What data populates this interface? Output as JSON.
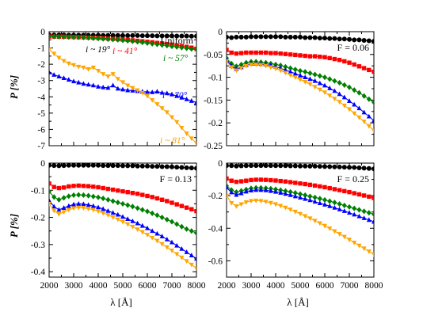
{
  "figure": {
    "xlabel": "λ [Å]",
    "ylabel": "P [%]",
    "colors": {
      "i19": "#000000",
      "i41": "#ff0000",
      "i57": "#008000",
      "i70": "#0000ff",
      "i81": "#ffa500"
    },
    "markers": {
      "i19": "circle",
      "i41": "square",
      "i57": "diamond",
      "i70": "triangle-up",
      "i81": "triangle-down"
    }
  },
  "chart_data": [
    {
      "type": "line",
      "panel": "top-left",
      "annotation": "Uniform",
      "ylim": [
        -7,
        0
      ],
      "xlim": [
        2000,
        8000
      ],
      "yticks": [
        "0",
        "-1",
        "-2",
        "-3",
        "-4",
        "-5",
        "-6",
        "-7"
      ],
      "xticks": [],
      "x": [
        2000,
        2200,
        2400,
        2600,
        2800,
        3000,
        3200,
        3400,
        3600,
        3800,
        4000,
        4200,
        4400,
        4600,
        4800,
        5000,
        5200,
        5400,
        5600,
        5800,
        6000,
        6200,
        6400,
        6600,
        6800,
        7000,
        7200,
        7400,
        7600,
        7800,
        8000
      ],
      "series": [
        {
          "key": "i19",
          "label": "i ~ 19°",
          "values": [
            -0.2,
            -0.2,
            -0.2,
            -0.2,
            -0.21,
            -0.21,
            -0.21,
            -0.21,
            -0.22,
            -0.22,
            -0.22,
            -0.23,
            -0.23,
            -0.23,
            -0.23,
            -0.24,
            -0.24,
            -0.24,
            -0.24,
            -0.25,
            -0.25,
            -0.25,
            -0.26,
            -0.26,
            -0.26,
            -0.26,
            -0.27,
            -0.27,
            -0.27,
            -0.28,
            -0.28
          ]
        },
        {
          "key": "i41",
          "label": "i ~ 41°",
          "values": [
            -0.3,
            -0.3,
            -0.31,
            -0.31,
            -0.32,
            -0.33,
            -0.34,
            -0.35,
            -0.36,
            -0.37,
            -0.38,
            -0.4,
            -0.42,
            -0.44,
            -0.46,
            -0.48,
            -0.5,
            -0.53,
            -0.56,
            -0.59,
            -0.62,
            -0.65,
            -0.69,
            -0.72,
            -0.76,
            -0.8,
            -0.84,
            -0.88,
            -0.93,
            -0.98,
            -1.05
          ]
        },
        {
          "key": "i57",
          "label": "i ~ 57°",
          "values": [
            -0.3,
            -0.3,
            -0.31,
            -0.32,
            -0.33,
            -0.34,
            -0.35,
            -0.36,
            -0.38,
            -0.4,
            -0.42,
            -0.44,
            -0.46,
            -0.48,
            -0.5,
            -0.53,
            -0.56,
            -0.59,
            -0.62,
            -0.66,
            -0.7,
            -0.74,
            -0.78,
            -0.82,
            -0.86,
            -0.9,
            -0.94,
            -0.98,
            -1.02,
            -1.06,
            -1.1
          ]
        },
        {
          "key": "i70",
          "label": "i ~ 70°",
          "values": [
            -2.5,
            -2.65,
            -2.75,
            -2.85,
            -2.95,
            -3.05,
            -3.12,
            -3.2,
            -3.25,
            -3.3,
            -3.38,
            -3.42,
            -3.45,
            -3.3,
            -3.5,
            -3.55,
            -3.6,
            -3.62,
            -3.65,
            -3.68,
            -3.7,
            -3.72,
            -3.68,
            -3.75,
            -3.78,
            -3.85,
            -3.95,
            -4.05,
            -4.15,
            -4.25,
            -4.35
          ]
        },
        {
          "key": "i81",
          "label": "i ~ 81°",
          "values": [
            -1.1,
            -1.35,
            -1.6,
            -1.8,
            -1.95,
            -2.05,
            -2.15,
            -2.2,
            -2.3,
            -2.2,
            -2.4,
            -2.6,
            -2.75,
            -2.6,
            -2.9,
            -3.1,
            -3.3,
            -3.45,
            -3.6,
            -3.75,
            -3.95,
            -4.2,
            -4.45,
            -4.7,
            -4.95,
            -5.25,
            -5.55,
            -5.9,
            -6.25,
            -6.55,
            -6.85
          ]
        }
      ]
    },
    {
      "type": "line",
      "panel": "top-right",
      "annotation": "F = 0.06",
      "ylim": [
        -0.25,
        0
      ],
      "xlim": [
        2000,
        8000
      ],
      "yticks": [
        "0",
        "-0.05",
        "-0.1",
        "-0.15",
        "-0.2",
        "-0.25"
      ],
      "xticks": [],
      "x": [
        2000,
        2200,
        2400,
        2600,
        2800,
        3000,
        3200,
        3400,
        3600,
        3800,
        4000,
        4200,
        4400,
        4600,
        4800,
        5000,
        5200,
        5400,
        5600,
        5800,
        6000,
        6200,
        6400,
        6600,
        6800,
        7000,
        7200,
        7400,
        7600,
        7800,
        8000
      ],
      "series": [
        {
          "key": "i19",
          "values": [
            -0.012,
            -0.013,
            -0.012,
            -0.012,
            -0.012,
            -0.011,
            -0.011,
            -0.011,
            -0.011,
            -0.011,
            -0.011,
            -0.011,
            -0.012,
            -0.012,
            -0.012,
            -0.012,
            -0.013,
            -0.013,
            -0.013,
            -0.014,
            -0.014,
            -0.015,
            -0.015,
            -0.016,
            -0.016,
            -0.017,
            -0.018,
            -0.018,
            -0.019,
            -0.02,
            -0.021
          ]
        },
        {
          "key": "i41",
          "values": [
            -0.04,
            -0.046,
            -0.048,
            -0.047,
            -0.046,
            -0.046,
            -0.046,
            -0.046,
            -0.046,
            -0.047,
            -0.047,
            -0.048,
            -0.049,
            -0.05,
            -0.051,
            -0.052,
            -0.053,
            -0.054,
            -0.054,
            -0.055,
            -0.056,
            -0.058,
            -0.06,
            -0.062,
            -0.065,
            -0.068,
            -0.072,
            -0.076,
            -0.08,
            -0.084,
            -0.088
          ]
        },
        {
          "key": "i57",
          "values": [
            -0.058,
            -0.07,
            -0.076,
            -0.072,
            -0.068,
            -0.066,
            -0.066,
            -0.067,
            -0.068,
            -0.07,
            -0.072,
            -0.074,
            -0.077,
            -0.08,
            -0.083,
            -0.086,
            -0.088,
            -0.091,
            -0.094,
            -0.097,
            -0.1,
            -0.104,
            -0.108,
            -0.112,
            -0.117,
            -0.122,
            -0.128,
            -0.134,
            -0.141,
            -0.148,
            -0.155
          ]
        },
        {
          "key": "i70",
          "values": [
            -0.062,
            -0.075,
            -0.082,
            -0.078,
            -0.073,
            -0.07,
            -0.07,
            -0.071,
            -0.072,
            -0.074,
            -0.077,
            -0.08,
            -0.084,
            -0.088,
            -0.092,
            -0.096,
            -0.1,
            -0.104,
            -0.108,
            -0.113,
            -0.118,
            -0.124,
            -0.13,
            -0.137,
            -0.144,
            -0.152,
            -0.16,
            -0.168,
            -0.177,
            -0.186,
            -0.195
          ]
        },
        {
          "key": "i81",
          "values": [
            -0.065,
            -0.078,
            -0.085,
            -0.08,
            -0.075,
            -0.072,
            -0.072,
            -0.073,
            -0.075,
            -0.078,
            -0.081,
            -0.085,
            -0.09,
            -0.095,
            -0.1,
            -0.105,
            -0.11,
            -0.115,
            -0.121,
            -0.127,
            -0.133,
            -0.14,
            -0.147,
            -0.154,
            -0.162,
            -0.17,
            -0.179,
            -0.188,
            -0.197,
            -0.207,
            -0.217
          ]
        }
      ]
    },
    {
      "type": "line",
      "panel": "bottom-left",
      "annotation": "F = 0.13",
      "ylim": [
        -0.42,
        0
      ],
      "xlim": [
        2000,
        8000
      ],
      "yticks": [
        "0",
        "-0.1",
        "-0.2",
        "-0.3",
        "-0.4"
      ],
      "xticks": [
        "2000",
        "3000",
        "4000",
        "5000",
        "6000",
        "7000",
        "8000"
      ],
      "x": [
        2000,
        2200,
        2400,
        2600,
        2800,
        3000,
        3200,
        3400,
        3600,
        3800,
        4000,
        4200,
        4400,
        4600,
        4800,
        5000,
        5200,
        5400,
        5600,
        5800,
        6000,
        6200,
        6400,
        6600,
        6800,
        7000,
        7200,
        7400,
        7600,
        7800,
        8000
      ],
      "series": [
        {
          "key": "i19",
          "values": [
            -0.008,
            -0.009,
            -0.01,
            -0.009,
            -0.008,
            -0.008,
            -0.008,
            -0.008,
            -0.008,
            -0.008,
            -0.008,
            -0.009,
            -0.009,
            -0.009,
            -0.009,
            -0.01,
            -0.01,
            -0.01,
            -0.011,
            -0.011,
            -0.011,
            -0.012,
            -0.012,
            -0.013,
            -0.013,
            -0.014,
            -0.015,
            -0.016,
            -0.017,
            -0.018,
            -0.019
          ]
        },
        {
          "key": "i41",
          "values": [
            -0.075,
            -0.088,
            -0.092,
            -0.09,
            -0.086,
            -0.084,
            -0.083,
            -0.084,
            -0.085,
            -0.087,
            -0.089,
            -0.092,
            -0.095,
            -0.098,
            -0.101,
            -0.104,
            -0.107,
            -0.11,
            -0.113,
            -0.117,
            -0.121,
            -0.125,
            -0.13,
            -0.135,
            -0.14,
            -0.146,
            -0.152,
            -0.158,
            -0.164,
            -0.17,
            -0.177
          ]
        },
        {
          "key": "i57",
          "values": [
            -0.105,
            -0.125,
            -0.135,
            -0.128,
            -0.122,
            -0.118,
            -0.117,
            -0.118,
            -0.12,
            -0.123,
            -0.126,
            -0.13,
            -0.135,
            -0.14,
            -0.145,
            -0.15,
            -0.155,
            -0.16,
            -0.166,
            -0.172,
            -0.178,
            -0.185,
            -0.192,
            -0.2,
            -0.208,
            -0.216,
            -0.225,
            -0.234,
            -0.243,
            -0.25,
            -0.258
          ]
        },
        {
          "key": "i70",
          "values": [
            -0.138,
            -0.16,
            -0.172,
            -0.165,
            -0.158,
            -0.152,
            -0.15,
            -0.151,
            -0.154,
            -0.158,
            -0.163,
            -0.169,
            -0.176,
            -0.183,
            -0.19,
            -0.198,
            -0.206,
            -0.214,
            -0.222,
            -0.231,
            -0.24,
            -0.25,
            -0.26,
            -0.27,
            -0.281,
            -0.292,
            -0.304,
            -0.316,
            -0.328,
            -0.34,
            -0.352
          ]
        },
        {
          "key": "i81",
          "values": [
            -0.15,
            -0.175,
            -0.188,
            -0.18,
            -0.172,
            -0.166,
            -0.164,
            -0.165,
            -0.168,
            -0.172,
            -0.177,
            -0.184,
            -0.191,
            -0.199,
            -0.207,
            -0.216,
            -0.225,
            -0.234,
            -0.244,
            -0.254,
            -0.264,
            -0.275,
            -0.286,
            -0.298,
            -0.31,
            -0.322,
            -0.335,
            -0.348,
            -0.361,
            -0.374,
            -0.388
          ]
        }
      ]
    },
    {
      "type": "line",
      "panel": "bottom-right",
      "annotation": "F = 0.25",
      "ylim": [
        -0.7,
        0
      ],
      "xlim": [
        2000,
        8000
      ],
      "yticks": [
        "0",
        "-0.2",
        "-0.4",
        "-0.6"
      ],
      "xticks": [
        "2000",
        "3000",
        "4000",
        "5000",
        "6000",
        "7000",
        "8000"
      ],
      "x": [
        2000,
        2200,
        2400,
        2600,
        2800,
        3000,
        3200,
        3400,
        3600,
        3800,
        4000,
        4200,
        4400,
        4600,
        4800,
        5000,
        5200,
        5400,
        5600,
        5800,
        6000,
        6200,
        6400,
        6600,
        6800,
        7000,
        7200,
        7400,
        7600,
        7800,
        8000
      ],
      "series": [
        {
          "key": "i19",
          "values": [
            -0.015,
            -0.016,
            -0.018,
            -0.017,
            -0.016,
            -0.015,
            -0.015,
            -0.015,
            -0.015,
            -0.015,
            -0.016,
            -0.016,
            -0.016,
            -0.017,
            -0.017,
            -0.018,
            -0.018,
            -0.019,
            -0.019,
            -0.02,
            -0.021,
            -0.022,
            -0.023,
            -0.024,
            -0.025,
            -0.026,
            -0.027,
            -0.029,
            -0.031,
            -0.033,
            -0.035
          ]
        },
        {
          "key": "i41",
          "values": [
            -0.095,
            -0.108,
            -0.115,
            -0.112,
            -0.108,
            -0.104,
            -0.102,
            -0.102,
            -0.103,
            -0.105,
            -0.107,
            -0.11,
            -0.113,
            -0.117,
            -0.121,
            -0.125,
            -0.129,
            -0.133,
            -0.138,
            -0.143,
            -0.148,
            -0.154,
            -0.16,
            -0.166,
            -0.172,
            -0.178,
            -0.185,
            -0.192,
            -0.199,
            -0.206,
            -0.214
          ]
        },
        {
          "key": "i57",
          "values": [
            -0.14,
            -0.165,
            -0.178,
            -0.17,
            -0.162,
            -0.155,
            -0.152,
            -0.152,
            -0.154,
            -0.157,
            -0.161,
            -0.166,
            -0.171,
            -0.177,
            -0.183,
            -0.19,
            -0.197,
            -0.204,
            -0.211,
            -0.218,
            -0.226,
            -0.234,
            -0.242,
            -0.251,
            -0.26,
            -0.269,
            -0.278,
            -0.287,
            -0.296,
            -0.305,
            -0.314
          ]
        },
        {
          "key": "i70",
          "values": [
            -0.15,
            -0.18,
            -0.195,
            -0.185,
            -0.175,
            -0.168,
            -0.165,
            -0.165,
            -0.167,
            -0.171,
            -0.176,
            -0.182,
            -0.189,
            -0.196,
            -0.204,
            -0.212,
            -0.22,
            -0.228,
            -0.237,
            -0.246,
            -0.255,
            -0.264,
            -0.274,
            -0.284,
            -0.294,
            -0.305,
            -0.316,
            -0.327,
            -0.338,
            -0.349,
            -0.36
          ]
        },
        {
          "key": "i81",
          "values": [
            -0.2,
            -0.245,
            -0.265,
            -0.252,
            -0.24,
            -0.232,
            -0.23,
            -0.232,
            -0.237,
            -0.244,
            -0.252,
            -0.262,
            -0.273,
            -0.285,
            -0.298,
            -0.311,
            -0.325,
            -0.339,
            -0.354,
            -0.369,
            -0.385,
            -0.401,
            -0.418,
            -0.435,
            -0.452,
            -0.47,
            -0.488,
            -0.506,
            -0.524,
            -0.542,
            -0.56
          ]
        }
      ]
    }
  ]
}
